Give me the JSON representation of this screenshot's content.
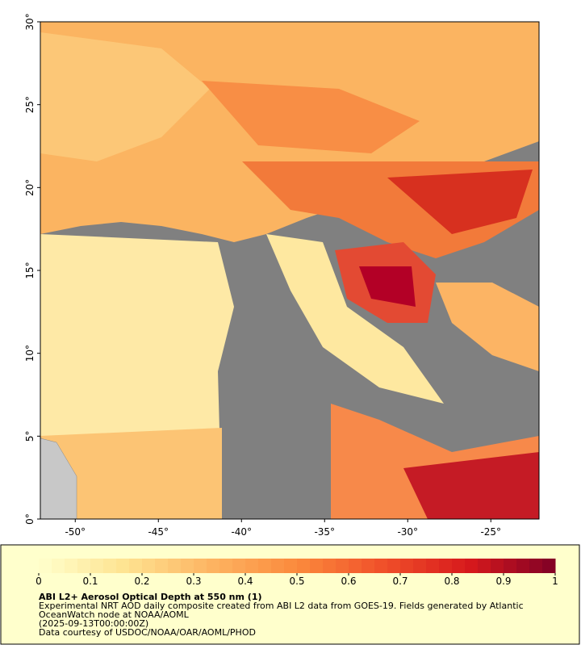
{
  "map": {
    "lon_lim": [
      -52.1,
      -22.1
    ],
    "lat_lim": [
      0,
      30
    ],
    "lon_ticks": [
      {
        "value": -50,
        "label": "-50°"
      },
      {
        "value": -45,
        "label": "-45°"
      },
      {
        "value": -40,
        "label": "-40°"
      },
      {
        "value": -35,
        "label": "-35°"
      },
      {
        "value": -30,
        "label": "-30°"
      },
      {
        "value": -25,
        "label": "-25°"
      }
    ],
    "lat_ticks": [
      {
        "value": 0,
        "label": "0°"
      },
      {
        "value": 5,
        "label": "5°"
      },
      {
        "value": 10,
        "label": "10°"
      },
      {
        "value": 15,
        "label": "15°"
      },
      {
        "value": 20,
        "label": "20°"
      },
      {
        "value": 25,
        "label": "25°"
      },
      {
        "value": 30,
        "label": "30°"
      }
    ]
  },
  "colorbar": {
    "lim": [
      0,
      1
    ],
    "ticks": [
      0,
      0.1,
      0.2,
      0.3,
      0.4,
      0.5,
      0.6,
      0.7,
      0.8,
      0.9,
      1
    ],
    "colors": [
      "#ffffcc",
      "#fee391",
      "#fdb462",
      "#fb8a3c",
      "#f0502a",
      "#d7191c",
      "#7f0026"
    ]
  },
  "caption": {
    "title": "ABI L2+ Aerosol Optical Depth at 550 nm (1)",
    "lines": [
      "Experimental NRT AOD daily composite created from ABI L2 data from GOES-19. Fields generated by Atlantic",
      "OceanWatch node at NOAA/AOML",
      "(2025-09-13T00:00:00Z)",
      "Data courtesy of USDOC/NOAA/OAR/AOML/PHOD"
    ]
  }
}
